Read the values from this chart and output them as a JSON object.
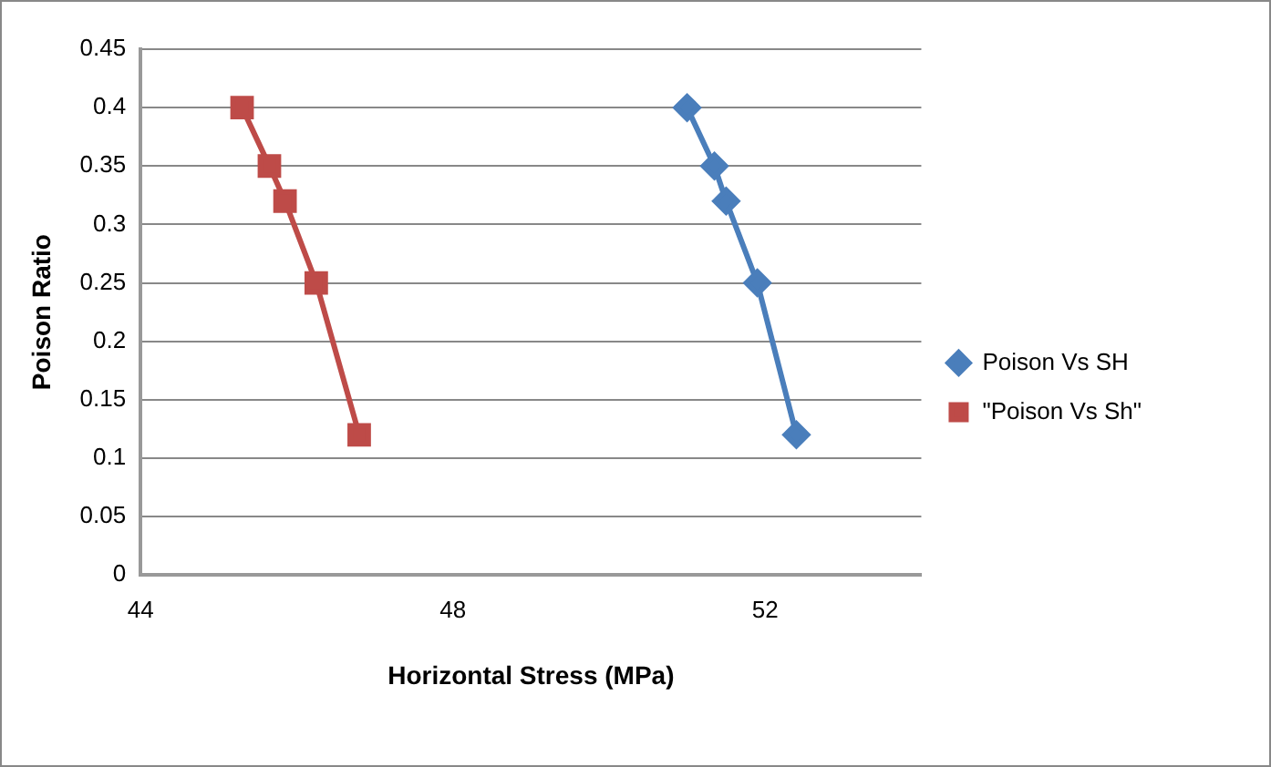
{
  "chart_data": {
    "type": "line",
    "xlabel": "Horizontal Stress (MPa)",
    "ylabel": "Poison Ratio",
    "xlim": [
      44,
      54
    ],
    "xticks": [
      44,
      48,
      52
    ],
    "ylim": [
      0,
      0.45
    ],
    "yticks": [
      0,
      0.05,
      0.1,
      0.15,
      0.2,
      0.25,
      0.3,
      0.35,
      0.4,
      0.45
    ],
    "grid": "y",
    "legend": "right",
    "line_style": "solid",
    "series": [
      {
        "name": "Poison Vs SH",
        "color": "#4a7ebb",
        "marker": "diamond",
        "x": [
          51.0,
          51.35,
          51.5,
          51.9,
          52.4
        ],
        "values": [
          0.4,
          0.35,
          0.32,
          0.25,
          0.12
        ]
      },
      {
        "name": "\"Poison Vs Sh\"",
        "color": "#be4b48",
        "marker": "square",
        "x": [
          45.3,
          45.65,
          45.85,
          46.25,
          46.8
        ],
        "values": [
          0.4,
          0.35,
          0.32,
          0.25,
          0.12
        ]
      }
    ]
  }
}
